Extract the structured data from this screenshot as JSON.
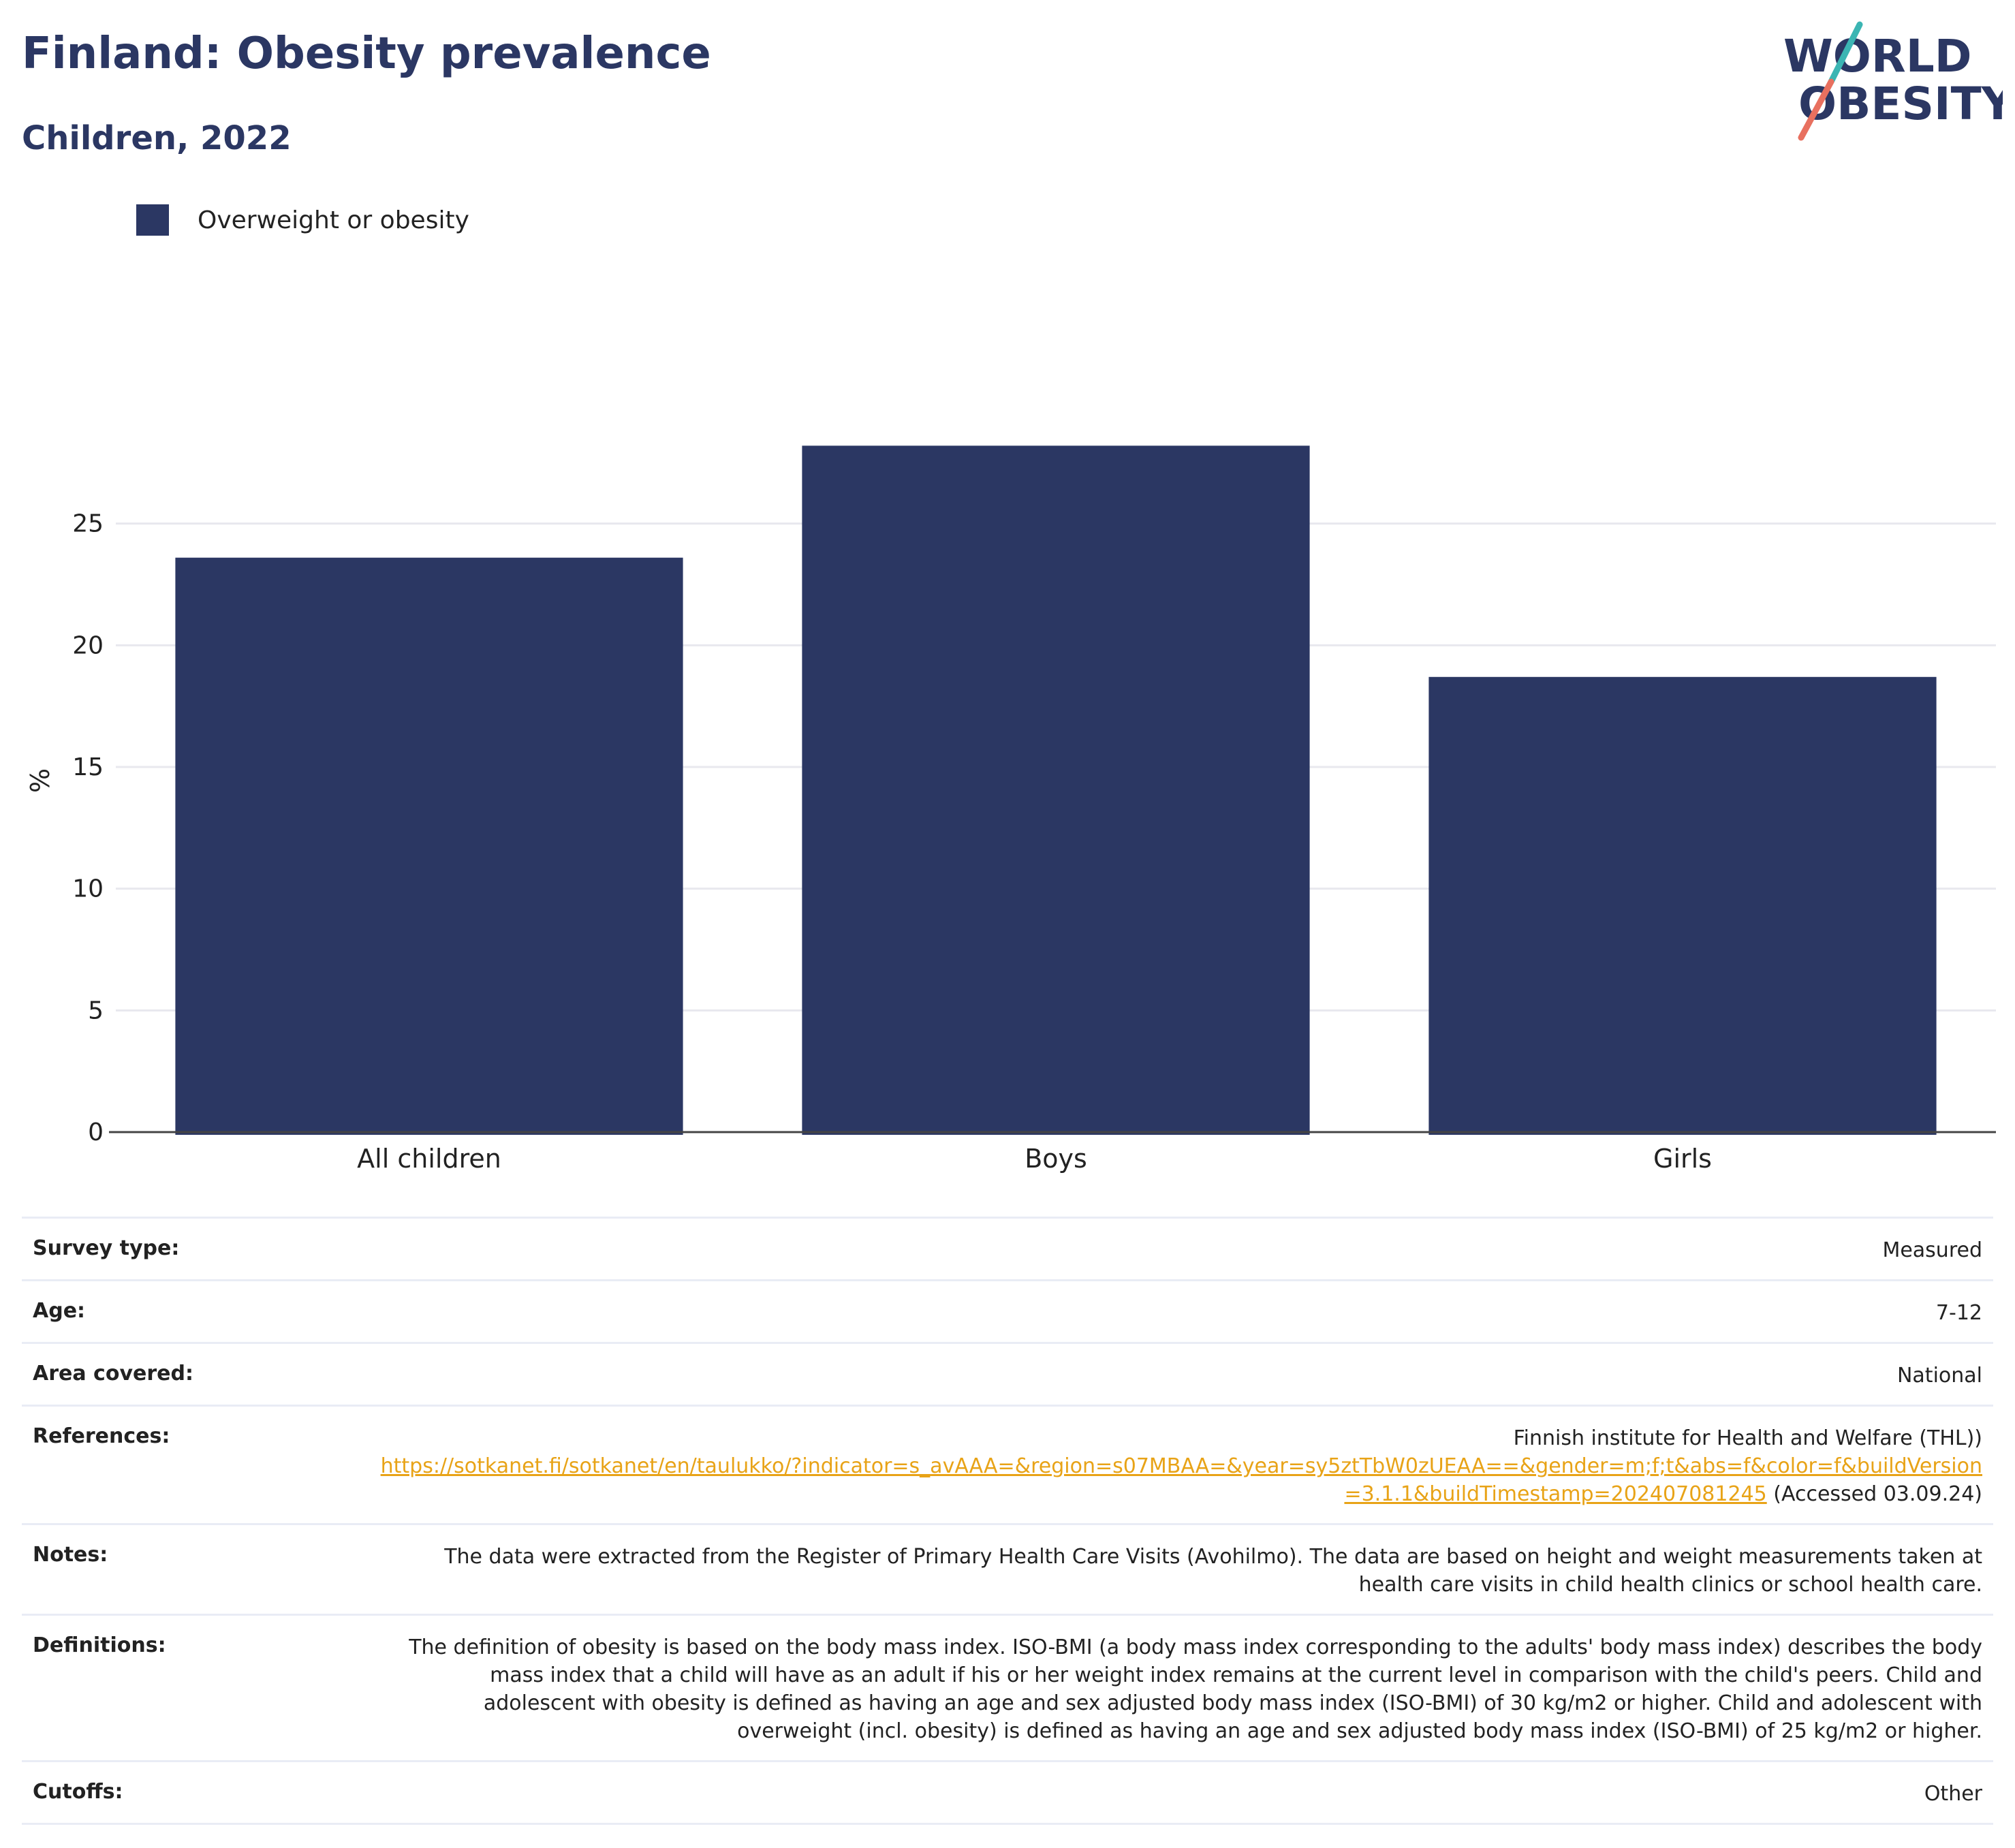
{
  "header": {
    "title": "Finland: Obesity prevalence",
    "subtitle": "Children, 2022"
  },
  "logo": {
    "line1": "WORLD",
    "line2": "OBESITY",
    "colors": {
      "text": "#2b3763",
      "slash_teal": "#3bb5b3",
      "slash_coral": "#e8705f"
    }
  },
  "colors": {
    "bar": "#2b3763",
    "grid": "#e8e8ee",
    "axis": "#444444",
    "link": "#e8a317"
  },
  "chart_data": {
    "type": "bar",
    "categories": [
      "All children",
      "Boys",
      "Girls"
    ],
    "series": [
      {
        "name": "Overweight or obesity",
        "values": [
          23.6,
          28.2,
          18.7
        ]
      }
    ],
    "ylabel": "%",
    "ylim": [
      0,
      30
    ],
    "yticks": [
      0,
      5,
      10,
      15,
      20,
      25
    ],
    "grid": true,
    "legend": "top-left"
  },
  "meta": [
    {
      "key": "Survey type:",
      "value": "Measured"
    },
    {
      "key": "Age:",
      "value": "7-12"
    },
    {
      "key": "Area covered:",
      "value": "National"
    },
    {
      "key": "References:",
      "value": "Finnish institute for Health and Welfare (THL))",
      "link": "https://sotkanet.fi/sotkanet/en/taulukko/?indicator=s_avAAA=&region=s07MBAA=&year=sy5ztTbW0zUEAA==&gender=m;f;t&abs=f&color=f&buildVersion=3.1.1&buildTimestamp=202407081245",
      "suffix": " (Accessed 03.09.24)"
    },
    {
      "key": "Notes:",
      "value": "The data were extracted from the Register of Primary Health Care Visits (Avohilmo). The data are based on height and weight measurements taken at health care visits in child health clinics or school health care."
    },
    {
      "key": "Definitions:",
      "value": "The definition of obesity is based on the body mass index. ISO-BMI (a body mass index corresponding to the adults' body mass index) describes the body mass index that a child will have as an adult if his or her weight index remains at the current level in comparison with the child's peers. Child and adolescent with obesity is defined as having an age and sex adjusted body mass index (ISO-BMI) of 30 kg/m2 or higher. Child and adolescent with overweight (incl. obesity) is defined as having an age and sex adjusted body mass index (ISO-BMI) of 25 kg/m2 or higher."
    },
    {
      "key": "Cutoffs:",
      "value": "Other"
    }
  ]
}
